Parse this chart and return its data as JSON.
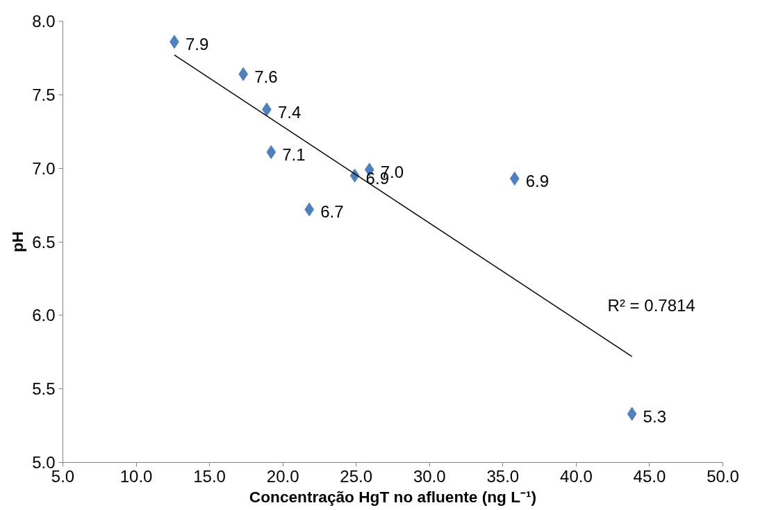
{
  "chart_data": {
    "type": "scatter",
    "xlabel": "Concentração HgT no afluente (ng L⁻¹)",
    "ylabel": "pH",
    "xlim": [
      5,
      50
    ],
    "ylim": [
      5,
      8
    ],
    "xticks": [
      {
        "value": 5,
        "label": "5.0"
      },
      {
        "value": 10,
        "label": "10.0"
      },
      {
        "value": 15,
        "label": "15.0"
      },
      {
        "value": 20,
        "label": "20.0"
      },
      {
        "value": 25,
        "label": "25.0"
      },
      {
        "value": 30,
        "label": "30.0"
      },
      {
        "value": 35,
        "label": "35.0"
      },
      {
        "value": 40,
        "label": "40.0"
      },
      {
        "value": 45,
        "label": "45.0"
      },
      {
        "value": 50,
        "label": "50.0"
      }
    ],
    "yticks": [
      {
        "value": 5,
        "label": "5.0"
      },
      {
        "value": 5.5,
        "label": "5.5"
      },
      {
        "value": 6,
        "label": "6.0"
      },
      {
        "value": 6.5,
        "label": "6.5"
      },
      {
        "value": 7,
        "label": "7.0"
      },
      {
        "value": 7.5,
        "label": "7.5"
      },
      {
        "value": 8,
        "label": "8.0"
      }
    ],
    "grid": false,
    "series": [
      {
        "marker": "diamond",
        "color": "#4f81bd",
        "x": [
          12.6,
          17.3,
          18.9,
          19.2,
          21.8,
          24.9,
          25.9,
          35.8,
          43.8
        ],
        "values": [
          7.86,
          7.64,
          7.4,
          7.11,
          6.72,
          6.95,
          6.99,
          6.93,
          5.33
        ],
        "value_labels": [
          "7.9",
          "7.6",
          "7.4",
          "7.1",
          "6.7",
          "6.9",
          "7.0",
          "6.9",
          "5.3"
        ]
      },
      {
        "type": "line",
        "color": "#000000",
        "x": [
          12.6,
          43.8
        ],
        "values": [
          7.77,
          5.72
        ],
        "line_style": "solid"
      }
    ],
    "annotations": [
      "R² = 0.7814"
    ]
  }
}
